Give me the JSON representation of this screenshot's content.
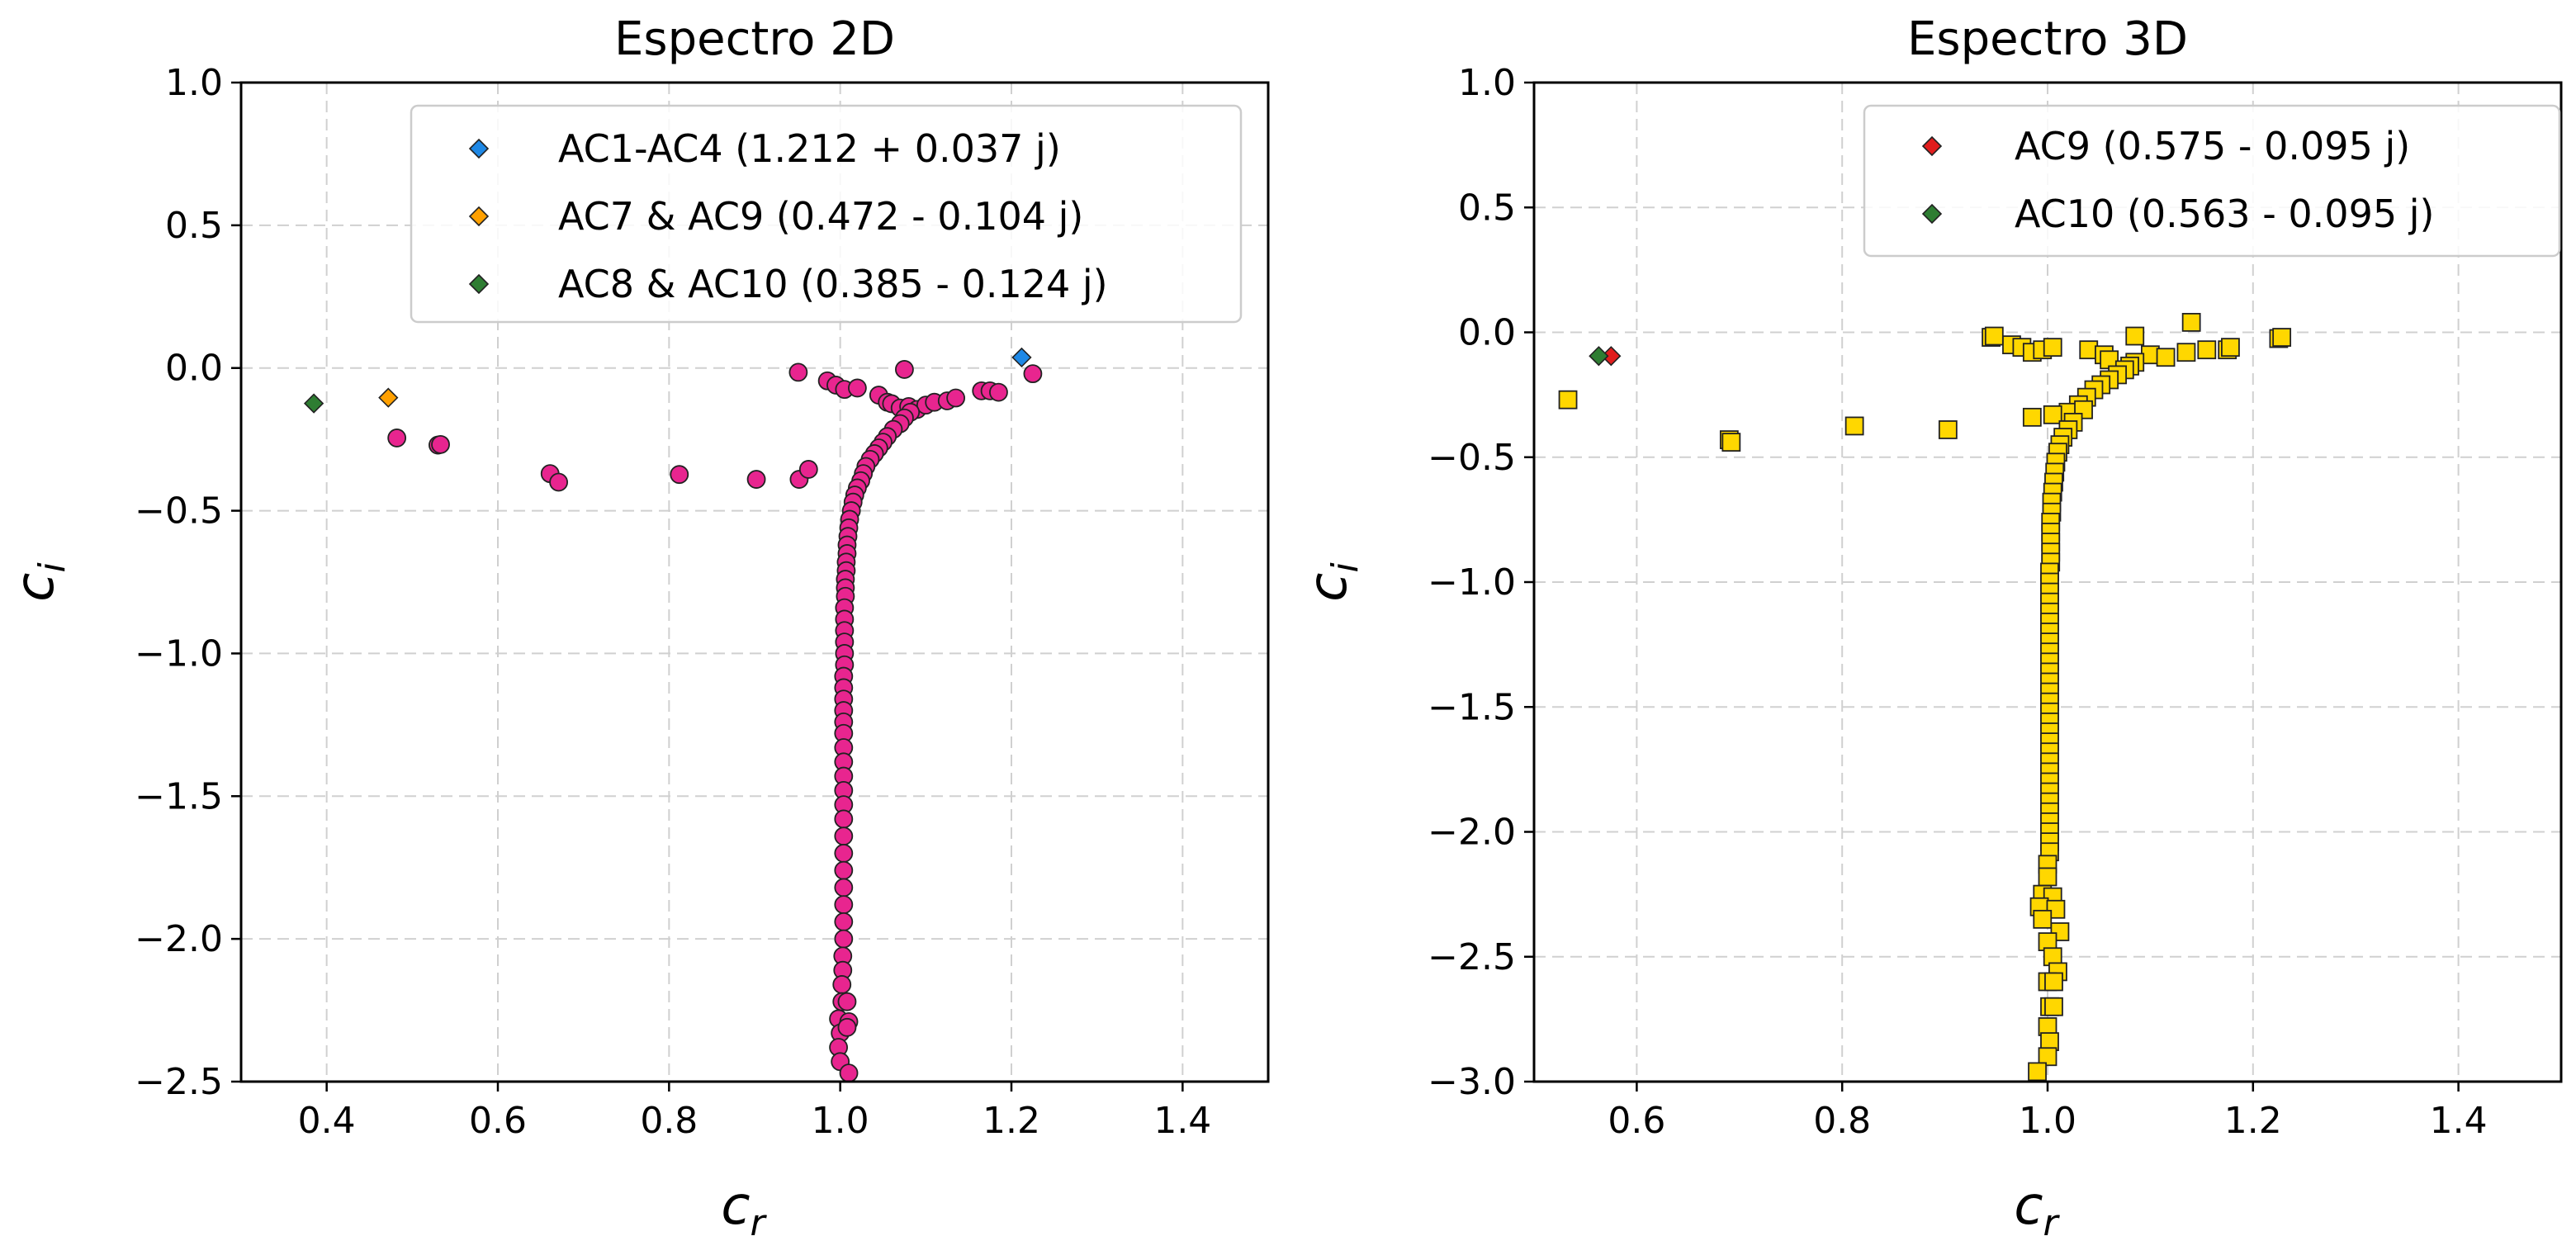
{
  "chart_data": [
    {
      "type": "scatter",
      "title": "Espectro 2D",
      "xlabel": "c",
      "xlabel_sub": "r",
      "ylabel": "c",
      "ylabel_sub": "i",
      "xlim": [
        0.3,
        1.5
      ],
      "ylim": [
        -2.5,
        1.0
      ],
      "xticks": [
        0.4,
        0.6,
        0.8,
        1.0,
        1.2,
        1.4
      ],
      "xtick_labels": [
        "0.4",
        "0.6",
        "0.8",
        "1.0",
        "1.2",
        "1.4"
      ],
      "yticks": [
        1.0,
        0.5,
        0.0,
        -0.5,
        -1.0,
        -1.5,
        -2.0,
        -2.5
      ],
      "ytick_labels": [
        "1.0",
        "0.5",
        "0.0",
        "−0.5",
        "−1.0",
        "−1.5",
        "−2.0",
        "−2.5"
      ],
      "grid": true,
      "legend_position": "top-right",
      "series": [
        {
          "marker": "circle",
          "color": "#e8258f",
          "points": [
            [
              0.482,
              -0.245
            ],
            [
              0.53,
              -0.27
            ],
            [
              0.533,
              -0.268
            ],
            [
              0.661,
              -0.37
            ],
            [
              0.671,
              -0.4
            ],
            [
              0.812,
              -0.373
            ],
            [
              0.902,
              -0.39
            ],
            [
              0.952,
              -0.39
            ],
            [
              0.963,
              -0.355
            ],
            [
              0.951,
              -0.015
            ],
            [
              0.985,
              -0.045
            ],
            [
              0.995,
              -0.06
            ],
            [
              1.005,
              -0.075
            ],
            [
              1.02,
              -0.07
            ],
            [
              1.075,
              -0.005
            ],
            [
              1.045,
              -0.095
            ],
            [
              1.055,
              -0.12
            ],
            [
              1.06,
              -0.125
            ],
            [
              1.07,
              -0.14
            ],
            [
              1.08,
              -0.135
            ],
            [
              1.09,
              -0.145
            ],
            [
              1.1,
              -0.13
            ],
            [
              1.11,
              -0.12
            ],
            [
              1.125,
              -0.115
            ],
            [
              1.135,
              -0.105
            ],
            [
              1.165,
              -0.08
            ],
            [
              1.175,
              -0.08
            ],
            [
              1.185,
              -0.085
            ],
            [
              1.225,
              -0.02
            ],
            [
              1.082,
              -0.155
            ],
            [
              1.075,
              -0.175
            ],
            [
              1.07,
              -0.195
            ],
            [
              1.062,
              -0.215
            ],
            [
              1.055,
              -0.24
            ],
            [
              1.05,
              -0.26
            ],
            [
              1.045,
              -0.28
            ],
            [
              1.04,
              -0.3
            ],
            [
              1.035,
              -0.32
            ],
            [
              1.03,
              -0.345
            ],
            [
              1.027,
              -0.37
            ],
            [
              1.024,
              -0.395
            ],
            [
              1.02,
              -0.42
            ],
            [
              1.017,
              -0.445
            ],
            [
              1.015,
              -0.47
            ],
            [
              1.013,
              -0.5
            ],
            [
              1.011,
              -0.53
            ],
            [
              1.01,
              -0.56
            ],
            [
              1.009,
              -0.59
            ],
            [
              1.008,
              -0.62
            ],
            [
              1.008,
              -0.65
            ],
            [
              1.007,
              -0.68
            ],
            [
              1.007,
              -0.71
            ],
            [
              1.006,
              -0.74
            ],
            [
              1.006,
              -0.77
            ],
            [
              1.006,
              -0.8
            ],
            [
              1.005,
              -0.84
            ],
            [
              1.005,
              -0.88
            ],
            [
              1.005,
              -0.92
            ],
            [
              1.005,
              -0.96
            ],
            [
              1.005,
              -1.0
            ],
            [
              1.005,
              -1.04
            ],
            [
              1.004,
              -1.08
            ],
            [
              1.004,
              -1.12
            ],
            [
              1.004,
              -1.16
            ],
            [
              1.004,
              -1.2
            ],
            [
              1.004,
              -1.24
            ],
            [
              1.004,
              -1.28
            ],
            [
              1.004,
              -1.33
            ],
            [
              1.004,
              -1.38
            ],
            [
              1.004,
              -1.43
            ],
            [
              1.004,
              -1.48
            ],
            [
              1.004,
              -1.53
            ],
            [
              1.004,
              -1.58
            ],
            [
              1.004,
              -1.64
            ],
            [
              1.004,
              -1.7
            ],
            [
              1.004,
              -1.76
            ],
            [
              1.004,
              -1.82
            ],
            [
              1.004,
              -1.88
            ],
            [
              1.004,
              -1.94
            ],
            [
              1.004,
              -2.0
            ],
            [
              1.003,
              -2.06
            ],
            [
              1.003,
              -2.11
            ],
            [
              1.002,
              -2.16
            ],
            [
              1.002,
              -2.22
            ],
            [
              1.008,
              -2.22
            ],
            [
              0.998,
              -2.28
            ],
            [
              1.01,
              -2.29
            ],
            [
              1.0,
              -2.33
            ],
            [
              1.008,
              -2.31
            ],
            [
              0.998,
              -2.38
            ],
            [
              1.0,
              -2.43
            ],
            [
              1.01,
              -2.47
            ]
          ]
        },
        {
          "name": "AC1-AC4 (1.212 + 0.037 j)",
          "marker": "diamond",
          "color": "#1e88e5",
          "points": [
            [
              1.212,
              0.037
            ]
          ]
        },
        {
          "name": "AC7 & AC9 (0.472 - 0.104 j)",
          "marker": "diamond",
          "color": "#ffa000",
          "points": [
            [
              0.472,
              -0.104
            ]
          ]
        },
        {
          "name": "AC8 & AC10 (0.385 - 0.124 j)",
          "marker": "diamond",
          "color": "#2e7d32",
          "points": [
            [
              0.385,
              -0.124
            ]
          ]
        }
      ]
    },
    {
      "type": "scatter",
      "title": "Espectro 3D",
      "xlabel": "c",
      "xlabel_sub": "r",
      "ylabel": "c",
      "ylabel_sub": "i",
      "xlim": [
        0.5,
        1.5
      ],
      "ylim": [
        -3.0,
        1.0
      ],
      "xticks": [
        0.6,
        0.8,
        1.0,
        1.2,
        1.4
      ],
      "xtick_labels": [
        "0.6",
        "0.8",
        "1.0",
        "1.2",
        "1.4"
      ],
      "yticks": [
        1.0,
        0.5,
        0.0,
        -0.5,
        -1.0,
        -1.5,
        -2.0,
        -2.5,
        -3.0
      ],
      "ytick_labels": [
        "1.0",
        "0.5",
        "0.0",
        "−0.5",
        "−1.0",
        "−1.5",
        "−2.0",
        "−2.5",
        "−3.0"
      ],
      "grid": true,
      "legend_position": "top-right",
      "series": [
        {
          "marker": "square",
          "color": "#ffd700",
          "points": [
            [
              0.533,
              -0.27
            ],
            [
              0.69,
              -0.43
            ],
            [
              0.692,
              -0.44
            ],
            [
              0.812,
              -0.375
            ],
            [
              0.903,
              -0.39
            ],
            [
              0.945,
              -0.02
            ],
            [
              0.948,
              -0.015
            ],
            [
              0.965,
              -0.05
            ],
            [
              0.975,
              -0.06
            ],
            [
              0.985,
              -0.08
            ],
            [
              0.995,
              -0.07
            ],
            [
              1.005,
              -0.06
            ],
            [
              1.04,
              -0.07
            ],
            [
              1.055,
              -0.09
            ],
            [
              1.06,
              -0.11
            ],
            [
              1.085,
              -0.015
            ],
            [
              1.1,
              -0.09
            ],
            [
              1.115,
              -0.1
            ],
            [
              1.14,
              0.04
            ],
            [
              1.135,
              -0.08
            ],
            [
              1.155,
              -0.07
            ],
            [
              1.175,
              -0.07
            ],
            [
              1.178,
              -0.06
            ],
            [
              1.225,
              -0.025
            ],
            [
              1.228,
              -0.02
            ],
            [
              1.085,
              -0.12
            ],
            [
              1.08,
              -0.135
            ],
            [
              1.075,
              -0.15
            ],
            [
              1.068,
              -0.17
            ],
            [
              1.06,
              -0.19
            ],
            [
              1.052,
              -0.21
            ],
            [
              1.045,
              -0.23
            ],
            [
              1.038,
              -0.26
            ],
            [
              1.03,
              -0.29
            ],
            [
              1.02,
              -0.32
            ],
            [
              1.005,
              -0.33
            ],
            [
              0.985,
              -0.34
            ],
            [
              1.035,
              -0.31
            ],
            [
              1.025,
              -0.36
            ],
            [
              1.02,
              -0.39
            ],
            [
              1.015,
              -0.42
            ],
            [
              1.012,
              -0.45
            ],
            [
              1.01,
              -0.48
            ],
            [
              1.008,
              -0.52
            ],
            [
              1.007,
              -0.56
            ],
            [
              1.006,
              -0.6
            ],
            [
              1.005,
              -0.64
            ],
            [
              1.004,
              -0.68
            ],
            [
              1.004,
              -0.72
            ],
            [
              1.003,
              -0.76
            ],
            [
              1.003,
              -0.8
            ],
            [
              1.003,
              -0.84
            ],
            [
              1.003,
              -0.88
            ],
            [
              1.003,
              -0.92
            ],
            [
              1.002,
              -0.96
            ],
            [
              1.002,
              -1.0
            ],
            [
              1.002,
              -1.04
            ],
            [
              1.002,
              -1.08
            ],
            [
              1.002,
              -1.12
            ],
            [
              1.002,
              -1.16
            ],
            [
              1.002,
              -1.2
            ],
            [
              1.002,
              -1.24
            ],
            [
              1.002,
              -1.28
            ],
            [
              1.002,
              -1.32
            ],
            [
              1.002,
              -1.36
            ],
            [
              1.002,
              -1.4
            ],
            [
              1.002,
              -1.44
            ],
            [
              1.002,
              -1.48
            ],
            [
              1.002,
              -1.52
            ],
            [
              1.002,
              -1.56
            ],
            [
              1.002,
              -1.6
            ],
            [
              1.002,
              -1.64
            ],
            [
              1.002,
              -1.68
            ],
            [
              1.002,
              -1.72
            ],
            [
              1.002,
              -1.76
            ],
            [
              1.002,
              -1.8
            ],
            [
              1.002,
              -1.84
            ],
            [
              1.002,
              -1.88
            ],
            [
              1.002,
              -1.92
            ],
            [
              1.002,
              -1.96
            ],
            [
              1.002,
              -2.0
            ],
            [
              1.002,
              -2.04
            ],
            [
              1.002,
              -2.08
            ],
            [
              1.0,
              -2.13
            ],
            [
              1.0,
              -2.18
            ],
            [
              0.995,
              -2.25
            ],
            [
              1.005,
              -2.26
            ],
            [
              0.992,
              -2.3
            ],
            [
              1.008,
              -2.31
            ],
            [
              0.995,
              -2.35
            ],
            [
              1.012,
              -2.4
            ],
            [
              1.0,
              -2.44
            ],
            [
              1.005,
              -2.5
            ],
            [
              1.01,
              -2.56
            ],
            [
              1.0,
              -2.6
            ],
            [
              1.006,
              -2.6
            ],
            [
              1.002,
              -2.7
            ],
            [
              1.006,
              -2.7
            ],
            [
              1.0,
              -2.78
            ],
            [
              1.002,
              -2.84
            ],
            [
              1.0,
              -2.9
            ],
            [
              0.99,
              -2.96
            ]
          ]
        },
        {
          "name": "AC9 (0.575 - 0.095 j)",
          "marker": "diamond",
          "color": "#e11d1d",
          "points": [
            [
              0.575,
              -0.095
            ]
          ]
        },
        {
          "name": "AC10 (0.563 - 0.095 j)",
          "marker": "diamond",
          "color": "#2e7d32",
          "points": [
            [
              0.563,
              -0.095
            ]
          ]
        }
      ]
    }
  ]
}
